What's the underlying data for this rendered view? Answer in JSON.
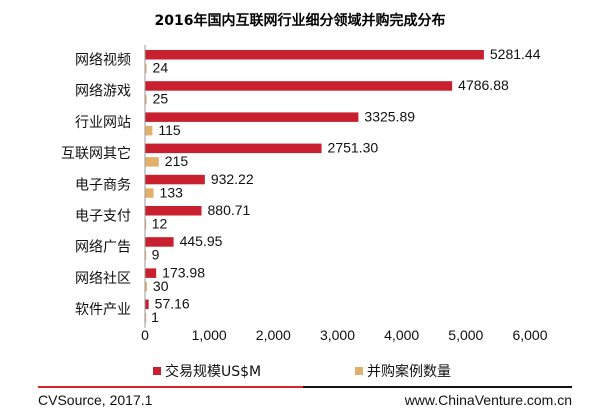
{
  "chart_data": {
    "type": "bar",
    "title": "2016年国内互联网行业细分领域并购完成分布",
    "categories": [
      "网络视频",
      "网络游戏",
      "行业网站",
      "互联网其它",
      "电子商务",
      "电子支付",
      "网络广告",
      "网络社区",
      "软件产业"
    ],
    "series": [
      {
        "name": "交易规模US$M",
        "values": [
          5281.44,
          4786.88,
          3325.89,
          2751.3,
          932.22,
          880.71,
          445.95,
          173.98,
          57.16
        ],
        "labels": [
          "5281.44",
          "4786.88",
          "3325.89",
          "2751.30",
          "932.22",
          "880.71",
          "445.95",
          "173.98",
          "57.16"
        ],
        "color": "#c8202f"
      },
      {
        "name": "并购案例数量",
        "values": [
          24,
          25,
          115,
          215,
          133,
          12,
          9,
          30,
          1
        ],
        "labels": [
          "24",
          "25",
          "115",
          "215",
          "133",
          "12",
          "9",
          "30",
          "1"
        ],
        "color": "#e3b06b"
      }
    ],
    "xlim": [
      0,
      6000
    ],
    "xticks": [
      "0",
      "1,000",
      "2,000",
      "3,000",
      "4,000",
      "5,000",
      "6,000"
    ],
    "orientation": "horizontal",
    "grid": false,
    "legend_position": "bottom"
  },
  "footer": {
    "source": "CVSource, 2017.1",
    "site": "www.ChinaVenture.com.cn",
    "rule_colors": [
      "#d9232d",
      "#111111"
    ]
  }
}
